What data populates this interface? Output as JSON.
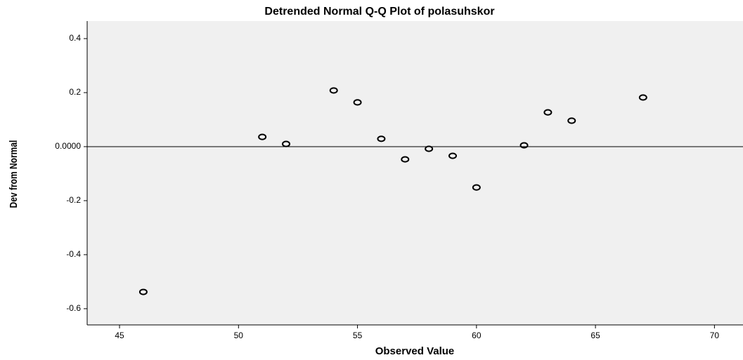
{
  "chart_data": {
    "type": "scatter",
    "title": "Detrended Normal Q-Q Plot of polasuhskor",
    "x_label": "Observed Value",
    "y_label": "Dev from Normal",
    "x": [
      46,
      51,
      52,
      54,
      55,
      56,
      57,
      58,
      59,
      60,
      62,
      63,
      64,
      67
    ],
    "values": [
      -0.538,
      0.036,
      0.01,
      0.208,
      0.164,
      0.029,
      -0.047,
      -0.008,
      -0.034,
      -0.151,
      0.005,
      0.127,
      0.096,
      0.182
    ],
    "color": "#000000",
    "xlim": [
      43.64,
      71.2
    ],
    "ylim": [
      -0.66,
      0.465
    ],
    "xticks": [
      45,
      50,
      55,
      60,
      65,
      70
    ],
    "yticks": [
      0.4,
      0.2,
      {
        "value": 0,
        "label": "0.0000"
      },
      -0.2,
      -0.4,
      -0.6
    ],
    "grid": false
  }
}
